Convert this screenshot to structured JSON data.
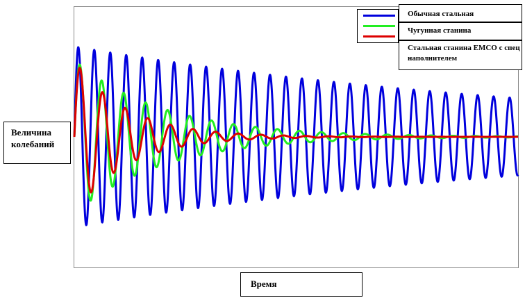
{
  "chart_data": {
    "type": "line",
    "title": "",
    "xlabel": "Время",
    "ylabel": "Величина колебаний",
    "grid": false,
    "legend_position": "top-right",
    "axis_ticks": "none",
    "xlim": [
      0,
      100
    ],
    "ylim": [
      -1.2,
      1.2
    ],
    "series": [
      {
        "name": "Обычная стальная",
        "color": "#0000dd",
        "model": "damped_sine",
        "amplitude": 1.0,
        "decay_rate": 0.0085,
        "period": 3.6,
        "phase_start": 0
      },
      {
        "name": "Чугунная станина",
        "color": "#22ee22",
        "model": "damped_sine",
        "amplitude": 0.85,
        "decay_rate": 0.05,
        "period": 4.95,
        "phase_start": 0
      },
      {
        "name": "Стальная станина ЕМСО с спец наполнителем",
        "color": "#dd0000",
        "model": "damped_sine",
        "amplitude": 0.85,
        "decay_rate": 0.085,
        "period": 5.1,
        "phase_start": 0
      }
    ]
  }
}
